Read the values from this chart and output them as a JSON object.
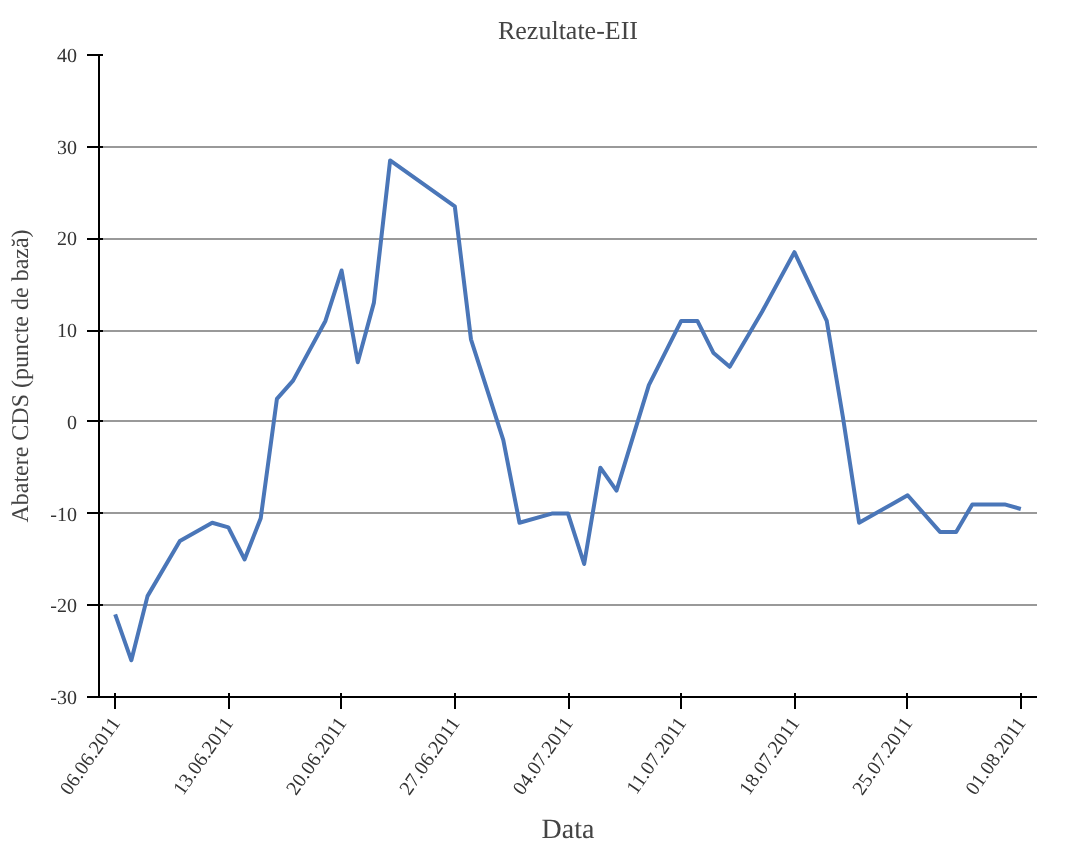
{
  "chart_data": {
    "type": "line",
    "title": "Rezultate-EII",
    "xlabel": "Data",
    "ylabel": "Abatere CDS (puncte de bază)",
    "x": [
      "2011-06-06",
      "2011-06-07",
      "2011-06-08",
      "2011-06-10",
      "2011-06-12",
      "2011-06-13",
      "2011-06-14",
      "2011-06-15",
      "2011-06-16",
      "2011-06-17",
      "2011-06-19",
      "2011-06-20",
      "2011-06-21",
      "2011-06-22",
      "2011-06-23",
      "2011-06-25",
      "2011-06-27",
      "2011-06-28",
      "2011-06-30",
      "2011-07-01",
      "2011-07-03",
      "2011-07-04",
      "2011-07-05",
      "2011-07-06",
      "2011-07-07",
      "2011-07-09",
      "2011-07-11",
      "2011-07-12",
      "2011-07-13",
      "2011-07-14",
      "2011-07-16",
      "2011-07-18",
      "2011-07-20",
      "2011-07-21",
      "2011-07-22",
      "2011-07-24",
      "2011-07-25",
      "2011-07-27",
      "2011-07-28",
      "2011-07-29",
      "2011-07-31",
      "2011-08-01"
    ],
    "series": [
      {
        "color": "#4a76b8",
        "values": [
          -21,
          -26,
          -19,
          -13,
          -11,
          -11.5,
          -15,
          -10.5,
          2.5,
          4.5,
          11,
          16.5,
          6.5,
          13,
          28.5,
          26,
          23.5,
          9,
          -2,
          -11,
          -10,
          -10,
          -15.5,
          -5,
          -7.5,
          4,
          11,
          11,
          7.5,
          6,
          12,
          18.5,
          11,
          0.5,
          -11,
          -9,
          -8,
          -12,
          -12,
          -9,
          -9,
          -9.5
        ]
      }
    ],
    "xlim": [
      "2011-06-05",
      "2011-08-02"
    ],
    "xticks": [
      {
        "value": "2011-06-06",
        "label": "06.06.2011"
      },
      {
        "value": "2011-06-13",
        "label": "13.06.2011"
      },
      {
        "value": "2011-06-20",
        "label": "20.06.2011"
      },
      {
        "value": "2011-06-27",
        "label": "27.06.2011"
      },
      {
        "value": "2011-07-04",
        "label": "04.07.2011"
      },
      {
        "value": "2011-07-11",
        "label": "11.07.2011"
      },
      {
        "value": "2011-07-18",
        "label": "18.07.2011"
      },
      {
        "value": "2011-07-25",
        "label": "25.07.2011"
      },
      {
        "value": "2011-08-01",
        "label": "01.08.2011"
      }
    ],
    "ylim": [
      -30,
      40
    ],
    "yticks": [
      -30,
      -20,
      -10,
      0,
      10,
      20,
      30,
      40
    ],
    "grid": "y",
    "marker": "none",
    "line_style": "solid"
  }
}
